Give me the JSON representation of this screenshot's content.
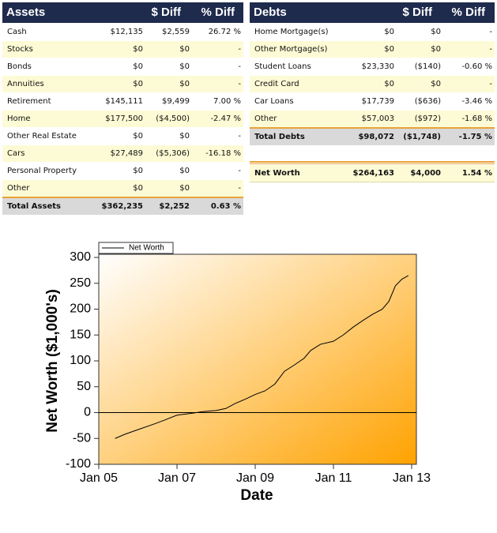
{
  "assets": {
    "header": [
      "Assets",
      "$ Diff",
      "% Diff"
    ],
    "rows": [
      [
        "Cash",
        "$12,135",
        "$2,559",
        "26.72 %"
      ],
      [
        "Stocks",
        "$0",
        "$0",
        "-"
      ],
      [
        "Bonds",
        "$0",
        "$0",
        "-"
      ],
      [
        "Annuities",
        "$0",
        "$0",
        "-"
      ],
      [
        "Retirement",
        "$145,111",
        "$9,499",
        "7.00 %"
      ],
      [
        "Home",
        "$177,500",
        "($4,500)",
        "-2.47 %"
      ],
      [
        "Other Real Estate",
        "$0",
        "$0",
        "-"
      ],
      [
        "Cars",
        "$27,489",
        "($5,306)",
        "-16.18 %"
      ],
      [
        "Personal Property",
        "$0",
        "$0",
        "-"
      ],
      [
        "Other",
        "$0",
        "$0",
        "-"
      ]
    ],
    "total": [
      "Total Assets",
      "$362,235",
      "$2,252",
      "0.63 %"
    ]
  },
  "debts": {
    "header": [
      "Debts",
      "$ Diff",
      "% Diff"
    ],
    "rows": [
      [
        "Home Mortgage(s)",
        "$0",
        "$0",
        "-"
      ],
      [
        "Other Mortgage(s)",
        "$0",
        "$0",
        "-"
      ],
      [
        "Student Loans",
        "$23,330",
        "($140)",
        "-0.60 %"
      ],
      [
        "Credit Card",
        "$0",
        "$0",
        "-"
      ],
      [
        "Car Loans",
        "$17,739",
        "($636)",
        "-3.46 %"
      ],
      [
        "Other",
        "$57,003",
        "($972)",
        "-1.68 %"
      ]
    ],
    "total": [
      "Total Debts",
      "$98,072",
      "($1,748)",
      "-1.75 %"
    ]
  },
  "net_worth": [
    "Net Worth",
    "$264,163",
    "$4,000",
    "1.54 %"
  ],
  "chart_data": {
    "type": "line",
    "x_label": "Date",
    "y_label": "Net Worth ($1,000's)",
    "x": [
      "2005-06",
      "2005-09",
      "2006-01",
      "2006-06",
      "2006-09",
      "2007-01",
      "2007-06",
      "2007-09",
      "2008-01",
      "2008-04",
      "2008-07",
      "2008-10",
      "2009-01",
      "2009-04",
      "2009-07",
      "2009-10",
      "2010-01",
      "2010-04",
      "2010-06",
      "2010-09",
      "2011-01",
      "2011-04",
      "2011-07",
      "2011-10",
      "2012-01",
      "2012-04",
      "2012-06",
      "2012-08",
      "2012-10",
      "2012-12"
    ],
    "series": [
      {
        "name": "Net Worth",
        "color": "#000000",
        "values": [
          -50,
          -42,
          -33,
          -22,
          -15,
          -5,
          -1,
          2,
          4,
          8,
          18,
          26,
          35,
          42,
          55,
          80,
          92,
          105,
          120,
          132,
          138,
          150,
          165,
          178,
          190,
          200,
          215,
          245,
          258,
          265
        ]
      }
    ],
    "xlim": [
      "2005-01",
      "2013-01"
    ],
    "xticks": [
      {
        "value": "2005-01",
        "label": "Jan 05"
      },
      {
        "value": "2007-01",
        "label": "Jan 07"
      },
      {
        "value": "2009-01",
        "label": "Jan 09"
      },
      {
        "value": "2011-01",
        "label": "Jan 11"
      },
      {
        "value": "2013-01",
        "label": "Jan 13"
      }
    ],
    "ylim": [
      -100,
      300
    ],
    "yticks": [
      -100,
      -50,
      0,
      50,
      100,
      150,
      200,
      250,
      300
    ],
    "zero_line": true,
    "legend": "top-left"
  }
}
